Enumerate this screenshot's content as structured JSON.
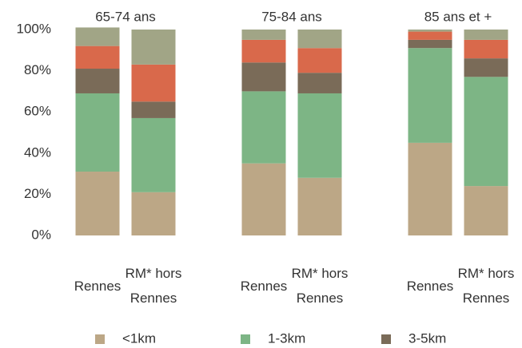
{
  "chart_data": {
    "type": "stacked_bar",
    "groups": [
      "65-74 ans",
      "75-84 ans",
      "85 ans et +"
    ],
    "categories": [
      "Rennes",
      "RM* hors Rennes",
      "Rennes",
      "RM* hors Rennes",
      "Rennes",
      "RM* hors Rennes"
    ],
    "series": [
      {
        "name": "<1km",
        "color": "#bca786",
        "values": [
          31,
          21,
          35,
          28,
          45,
          24
        ]
      },
      {
        "name": "1-3km",
        "color": "#7db585",
        "values": [
          38,
          36,
          35,
          41,
          46,
          53
        ]
      },
      {
        "name": "3-5km",
        "color": "#7a6b58",
        "values": [
          12,
          8,
          14,
          10,
          4,
          9
        ]
      },
      {
        "color": "#d9694b",
        "values": [
          11,
          18,
          11,
          12,
          4,
          9
        ]
      },
      {
        "color": "#a1a586",
        "values": [
          9,
          17,
          5,
          9,
          1,
          5
        ]
      }
    ],
    "ylim": [
      0,
      100
    ],
    "yticks": [
      {
        "value": 0,
        "label": "0%"
      },
      {
        "value": 20,
        "label": "20%"
      },
      {
        "value": 40,
        "label": "40%"
      },
      {
        "value": 60,
        "label": "60%"
      },
      {
        "value": 80,
        "label": "80%"
      },
      {
        "value": 100,
        "label": "100%"
      }
    ],
    "legend": "bottom"
  }
}
